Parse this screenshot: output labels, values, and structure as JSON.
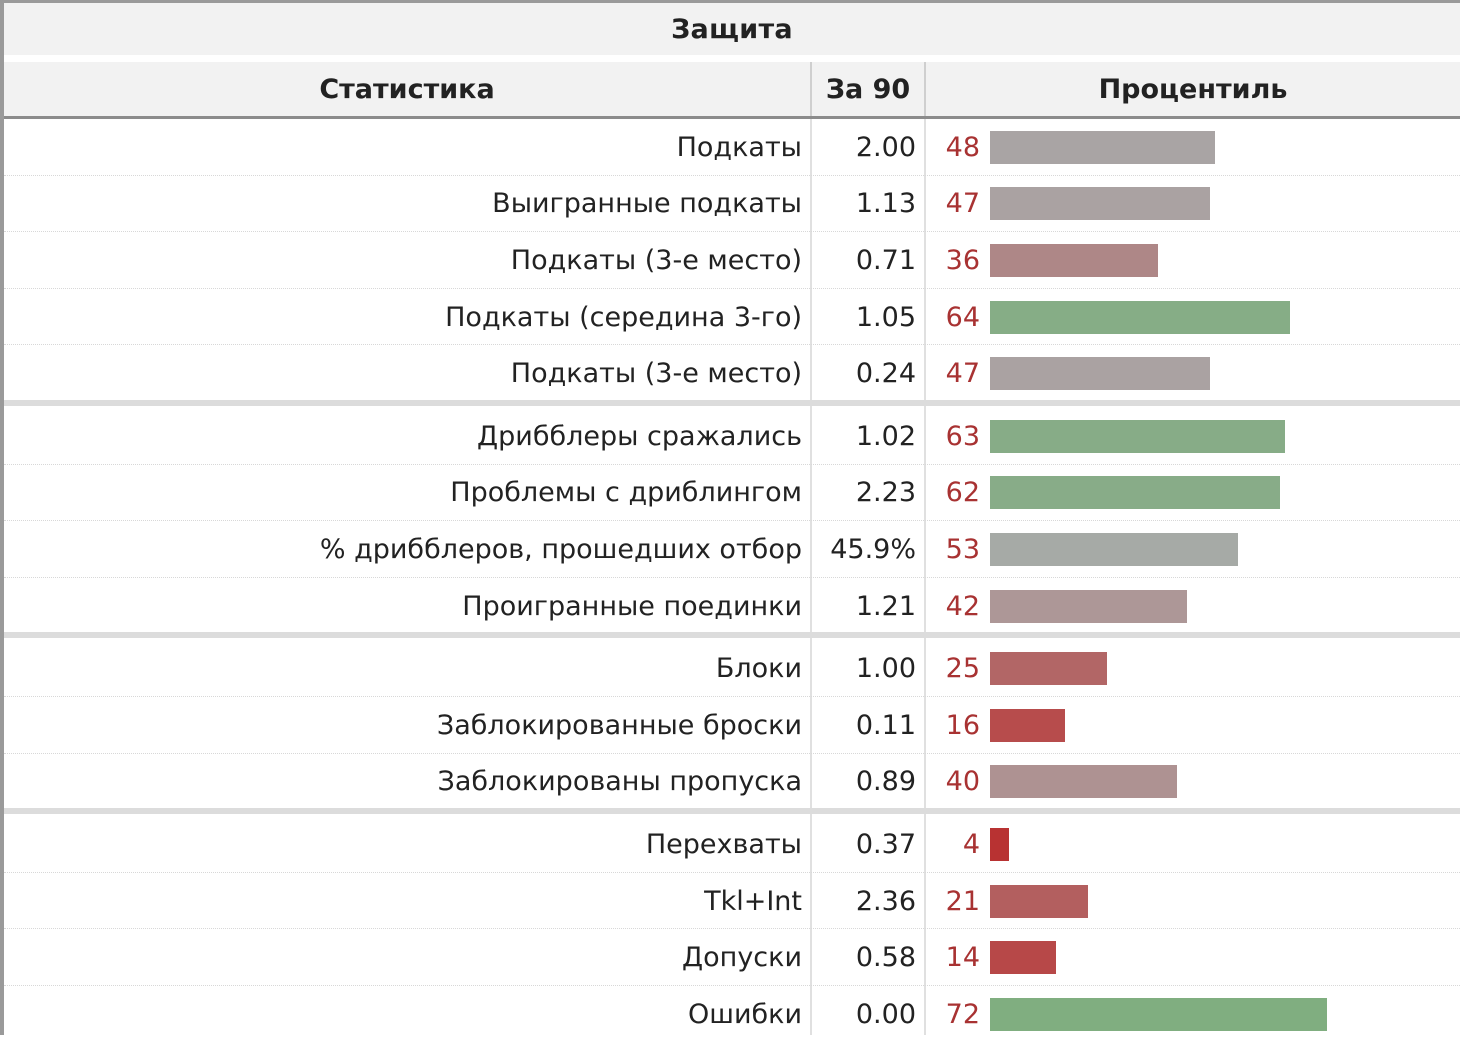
{
  "table": {
    "title": "Защита",
    "headers": {
      "stat": "Статистика",
      "per90": "За 90",
      "percentile": "Процентиль"
    },
    "groups": [
      {
        "rows": [
          {
            "label": "Подкаты",
            "value": "2.00",
            "percentile": 48,
            "bar_color": "#a9a4a4"
          },
          {
            "label": "Выигранные подкаты",
            "value": "1.13",
            "percentile": 47,
            "bar_color": "#aaa2a2"
          },
          {
            "label": "Подкаты (3-е место)",
            "value": "0.71",
            "percentile": 36,
            "bar_color": "#ae8787"
          },
          {
            "label": "Подкаты (середина 3-го)",
            "value": "1.05",
            "percentile": 64,
            "bar_color": "#86ad86"
          },
          {
            "label": "Подкаты (3-е место)",
            "value": "0.24",
            "percentile": 47,
            "bar_color": "#aaa2a2"
          }
        ]
      },
      {
        "rows": [
          {
            "label": "Дрибблеры сражались",
            "value": "1.02",
            "percentile": 63,
            "bar_color": "#87ac87"
          },
          {
            "label": "Проблемы с дриблингом",
            "value": "2.23",
            "percentile": 62,
            "bar_color": "#88ac88"
          },
          {
            "label": "% дрибблеров, прошедших отбор",
            "value": "45.9%",
            "percentile": 53,
            "bar_color": "#a6aaa6"
          },
          {
            "label": "Проигранные поединки",
            "value": "1.21",
            "percentile": 42,
            "bar_color": "#ad9797"
          }
        ]
      },
      {
        "rows": [
          {
            "label": "Блоки",
            "value": "1.00",
            "percentile": 25,
            "bar_color": "#b26666"
          },
          {
            "label": "Заблокированные броски",
            "value": "0.11",
            "percentile": 16,
            "bar_color": "#b74c4c"
          },
          {
            "label": "Заблокированы пропуска",
            "value": "0.89",
            "percentile": 40,
            "bar_color": "#ae9292"
          }
        ]
      },
      {
        "rows": [
          {
            "label": "Перехваты",
            "value": "0.37",
            "percentile": 4,
            "bar_color": "#b83232"
          },
          {
            "label": "Tkl+Int",
            "value": "2.36",
            "percentile": 21,
            "bar_color": "#b35f5f"
          },
          {
            "label": "Допуски",
            "value": "0.58",
            "percentile": 14,
            "bar_color": "#b74848"
          },
          {
            "label": "Ошибки",
            "value": "0.00",
            "percentile": 72,
            "bar_color": "#80ae80"
          }
        ]
      }
    ]
  }
}
